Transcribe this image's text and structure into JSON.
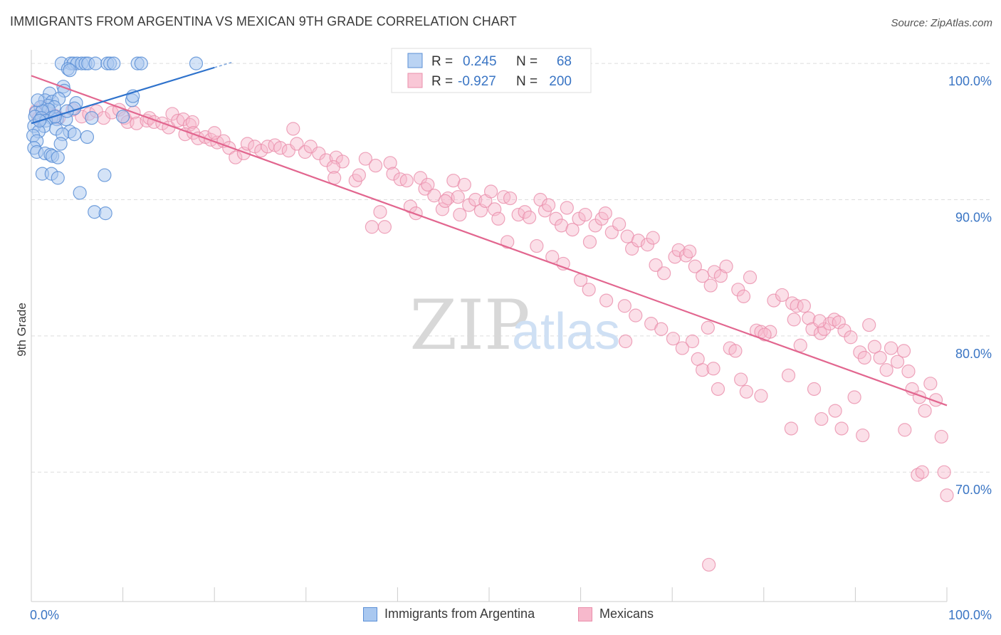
{
  "title": "IMMIGRANTS FROM ARGENTINA VS MEXICAN 9TH GRADE CORRELATION CHART",
  "source": "Source: ZipAtlas.com",
  "watermark": {
    "zip": "ZIP",
    "atlas": "atlas"
  },
  "colors": {
    "argentina_fill": "#a9c8f0",
    "argentina_stroke": "#5b8fd6",
    "argentina_line": "#2e72cc",
    "mexican_fill": "#f7b9cc",
    "mexican_stroke": "#ea8fab",
    "mexican_line": "#e2668f",
    "axis_text": "#3a75c4",
    "grid": "#dddddd"
  },
  "chart_data": {
    "type": "scatter",
    "title": "IMMIGRANTS FROM ARGENTINA VS MEXICAN 9TH GRADE CORRELATION CHART",
    "xlabel": "",
    "ylabel": "9th Grade",
    "xlim": [
      0,
      100
    ],
    "ylim": [
      60.5,
      101
    ],
    "x_tick_labels": [
      "0.0%",
      "100.0%"
    ],
    "y_ticks": [
      70,
      80,
      90,
      100
    ],
    "y_tick_labels": [
      "70.0%",
      "80.0%",
      "90.0%",
      "100.0%"
    ],
    "grid": true,
    "legend_stats": [
      {
        "r_label": "R =",
        "r_value": "0.245",
        "n_label": "N =",
        "n_value": "68"
      },
      {
        "r_label": "R =",
        "r_value": "-0.927",
        "n_label": "N =",
        "n_value": "200"
      }
    ],
    "series": [
      {
        "name": "Immigrants from Argentina",
        "R": 0.245,
        "N": 68,
        "trendline": {
          "x": [
            0,
            20
          ],
          "y": [
            95.6,
            99.7
          ]
        },
        "trendline_dashed": {
          "x": [
            20,
            22
          ],
          "y": [
            99.7,
            100.1
          ]
        },
        "points": [
          [
            3.3,
            100
          ],
          [
            4.3,
            100
          ],
          [
            4.6,
            100
          ],
          [
            5.0,
            100
          ],
          [
            5.5,
            100
          ],
          [
            5.9,
            100
          ],
          [
            6.2,
            100
          ],
          [
            7.0,
            100
          ],
          [
            8.3,
            100
          ],
          [
            8.6,
            100
          ],
          [
            9.0,
            100
          ],
          [
            11.6,
            100
          ],
          [
            12.0,
            100
          ],
          [
            18.0,
            100
          ],
          [
            4.0,
            99.6
          ],
          [
            4.2,
            99.5
          ],
          [
            3.5,
            98.3
          ],
          [
            3.6,
            98.0
          ],
          [
            2.0,
            97.8
          ],
          [
            1.5,
            97.3
          ],
          [
            2.3,
            97.2
          ],
          [
            3.0,
            97.4
          ],
          [
            1.8,
            96.9
          ],
          [
            2.5,
            96.8
          ],
          [
            4.9,
            97.1
          ],
          [
            1.0,
            96.8
          ],
          [
            1.9,
            96.6
          ],
          [
            4.7,
            96.7
          ],
          [
            0.5,
            96.4
          ],
          [
            1.2,
            96.5
          ],
          [
            0.4,
            96.1
          ],
          [
            1.1,
            96.0
          ],
          [
            2.2,
            96.0
          ],
          [
            2.8,
            95.9
          ],
          [
            3.8,
            95.9
          ],
          [
            1.6,
            95.8
          ],
          [
            0.3,
            95.4
          ],
          [
            1.4,
            95.4
          ],
          [
            2.7,
            95.2
          ],
          [
            0.8,
            95.0
          ],
          [
            4.2,
            95.0
          ],
          [
            0.2,
            94.7
          ],
          [
            3.4,
            94.8
          ],
          [
            4.7,
            94.8
          ],
          [
            6.1,
            94.6
          ],
          [
            0.6,
            94.3
          ],
          [
            0.3,
            93.8
          ],
          [
            3.2,
            94.1
          ],
          [
            0.6,
            93.5
          ],
          [
            1.5,
            93.4
          ],
          [
            2.1,
            93.3
          ],
          [
            2.3,
            93.2
          ],
          [
            2.9,
            93.1
          ],
          [
            1.2,
            91.9
          ],
          [
            2.2,
            91.9
          ],
          [
            2.9,
            91.6
          ],
          [
            8.0,
            91.8
          ],
          [
            5.3,
            90.5
          ],
          [
            6.9,
            89.1
          ],
          [
            8.1,
            89.0
          ],
          [
            6.6,
            96.0
          ],
          [
            10.0,
            96.1
          ],
          [
            11.0,
            97.3
          ],
          [
            11.1,
            97.6
          ],
          [
            0.7,
            97.3
          ],
          [
            3.9,
            96.5
          ],
          [
            0.9,
            95.8
          ],
          [
            2.6,
            96.1
          ]
        ]
      },
      {
        "name": "Mexicans",
        "R": -0.927,
        "N": 200,
        "trendline": {
          "x": [
            0,
            100
          ],
          "y": [
            99.1,
            74.9
          ]
        },
        "points": [
          [
            0.5,
            96.5
          ],
          [
            0.8,
            96.0
          ],
          [
            1.2,
            96.8
          ],
          [
            1.8,
            96.5
          ],
          [
            2.5,
            96.2
          ],
          [
            3.0,
            96.0
          ],
          [
            4.5,
            96.6
          ],
          [
            5.5,
            96.1
          ],
          [
            6.3,
            96.3
          ],
          [
            7.1,
            96.5
          ],
          [
            7.9,
            96.0
          ],
          [
            8.8,
            96.4
          ],
          [
            9.6,
            96.6
          ],
          [
            10.2,
            96.0
          ],
          [
            10.5,
            95.7
          ],
          [
            11.2,
            96.4
          ],
          [
            11.5,
            95.6
          ],
          [
            12.6,
            95.8
          ],
          [
            12.9,
            96.0
          ],
          [
            13.4,
            95.7
          ],
          [
            14.3,
            95.6
          ],
          [
            15.0,
            95.3
          ],
          [
            15.4,
            96.3
          ],
          [
            16.0,
            95.8
          ],
          [
            16.6,
            95.9
          ],
          [
            17.3,
            95.5
          ],
          [
            17.6,
            95.7
          ],
          [
            16.8,
            94.8
          ],
          [
            17.7,
            94.9
          ],
          [
            18.2,
            94.5
          ],
          [
            19.0,
            94.6
          ],
          [
            19.6,
            94.4
          ],
          [
            20.3,
            94.2
          ],
          [
            20.0,
            94.9
          ],
          [
            21.0,
            94.3
          ],
          [
            21.6,
            93.8
          ],
          [
            22.3,
            93.1
          ],
          [
            23.2,
            93.4
          ],
          [
            23.6,
            94.1
          ],
          [
            24.4,
            93.9
          ],
          [
            25.1,
            93.6
          ],
          [
            25.8,
            93.9
          ],
          [
            26.6,
            94.0
          ],
          [
            27.2,
            93.8
          ],
          [
            28.1,
            93.6
          ],
          [
            28.6,
            95.2
          ],
          [
            29.0,
            94.1
          ],
          [
            29.9,
            93.5
          ],
          [
            30.5,
            93.9
          ],
          [
            31.4,
            93.4
          ],
          [
            32.2,
            92.9
          ],
          [
            33.3,
            93.1
          ],
          [
            34.0,
            92.8
          ],
          [
            33.0,
            92.4
          ],
          [
            33.1,
            91.6
          ],
          [
            35.4,
            91.4
          ],
          [
            35.8,
            91.8
          ],
          [
            36.5,
            93.0
          ],
          [
            37.6,
            92.5
          ],
          [
            38.1,
            89.1
          ],
          [
            38.6,
            88.0
          ],
          [
            39.2,
            92.7
          ],
          [
            39.5,
            91.9
          ],
          [
            40.3,
            91.5
          ],
          [
            41.0,
            91.4
          ],
          [
            41.4,
            89.5
          ],
          [
            42.5,
            91.6
          ],
          [
            43.0,
            90.8
          ],
          [
            43.3,
            91.1
          ],
          [
            44.0,
            90.3
          ],
          [
            44.9,
            89.3
          ],
          [
            45.5,
            90.1
          ],
          [
            46.1,
            91.4
          ],
          [
            46.6,
            90.2
          ],
          [
            47.3,
            91.1
          ],
          [
            47.8,
            89.6
          ],
          [
            48.5,
            90.0
          ],
          [
            49.1,
            89.2
          ],
          [
            49.6,
            89.9
          ],
          [
            50.2,
            90.6
          ],
          [
            50.6,
            89.3
          ],
          [
            51.6,
            90.2
          ],
          [
            52.3,
            90.1
          ],
          [
            53.2,
            88.9
          ],
          [
            53.9,
            89.1
          ],
          [
            54.4,
            88.7
          ],
          [
            55.6,
            90.0
          ],
          [
            56.1,
            89.2
          ],
          [
            56.5,
            89.6
          ],
          [
            57.3,
            88.6
          ],
          [
            57.9,
            88.1
          ],
          [
            58.5,
            89.4
          ],
          [
            59.1,
            87.8
          ],
          [
            59.8,
            88.6
          ],
          [
            60.5,
            88.9
          ],
          [
            61.0,
            86.9
          ],
          [
            61.6,
            88.1
          ],
          [
            62.3,
            88.6
          ],
          [
            62.7,
            89.0
          ],
          [
            63.4,
            87.6
          ],
          [
            64.2,
            88.2
          ],
          [
            65.1,
            87.3
          ],
          [
            65.6,
            86.4
          ],
          [
            66.3,
            87.0
          ],
          [
            67.3,
            86.7
          ],
          [
            67.9,
            87.2
          ],
          [
            68.2,
            85.2
          ],
          [
            69.1,
            84.6
          ],
          [
            70.3,
            85.8
          ],
          [
            70.7,
            86.3
          ],
          [
            71.5,
            85.9
          ],
          [
            71.9,
            86.2
          ],
          [
            72.5,
            85.1
          ],
          [
            73.3,
            84.4
          ],
          [
            74.2,
            83.7
          ],
          [
            74.6,
            84.7
          ],
          [
            75.3,
            84.4
          ],
          [
            75.9,
            85.1
          ],
          [
            77.2,
            83.4
          ],
          [
            77.8,
            82.9
          ],
          [
            78.5,
            84.3
          ],
          [
            79.2,
            80.4
          ],
          [
            79.7,
            80.3
          ],
          [
            80.7,
            80.3
          ],
          [
            81.1,
            82.6
          ],
          [
            82.0,
            83.0
          ],
          [
            83.1,
            82.4
          ],
          [
            83.6,
            82.2
          ],
          [
            84.4,
            82.2
          ],
          [
            84.9,
            81.3
          ],
          [
            85.3,
            80.5
          ],
          [
            86.2,
            80.2
          ],
          [
            86.6,
            80.5
          ],
          [
            87.2,
            80.9
          ],
          [
            87.7,
            81.2
          ],
          [
            88.2,
            81.0
          ],
          [
            88.8,
            80.4
          ],
          [
            89.5,
            79.9
          ],
          [
            90.5,
            78.8
          ],
          [
            91.0,
            78.4
          ],
          [
            91.5,
            80.8
          ],
          [
            92.1,
            79.2
          ],
          [
            92.7,
            78.4
          ],
          [
            93.4,
            77.5
          ],
          [
            93.9,
            79.1
          ],
          [
            94.6,
            78.1
          ],
          [
            95.3,
            78.9
          ],
          [
            95.8,
            77.4
          ],
          [
            96.2,
            76.1
          ],
          [
            97.0,
            75.5
          ],
          [
            97.6,
            74.5
          ],
          [
            98.2,
            76.5
          ],
          [
            98.8,
            75.3
          ],
          [
            99.4,
            72.6
          ],
          [
            99.7,
            70.0
          ],
          [
            100.0,
            68.3
          ],
          [
            74.0,
            63.2
          ],
          [
            83.3,
            81.2
          ],
          [
            84.0,
            79.3
          ],
          [
            64.9,
            79.6
          ],
          [
            82.7,
            77.1
          ],
          [
            80.1,
            80.1
          ],
          [
            72.2,
            79.6
          ],
          [
            73.9,
            80.6
          ],
          [
            76.3,
            79.1
          ],
          [
            76.9,
            78.9
          ],
          [
            77.5,
            76.8
          ],
          [
            86.1,
            81.1
          ],
          [
            89.9,
            75.5
          ],
          [
            95.4,
            73.1
          ],
          [
            96.8,
            69.8
          ],
          [
            97.3,
            70.0
          ],
          [
            37.2,
            88.0
          ],
          [
            42.0,
            89.0
          ],
          [
            45.2,
            89.9
          ],
          [
            46.8,
            88.9
          ],
          [
            51.0,
            88.6
          ],
          [
            52.0,
            86.9
          ],
          [
            55.2,
            86.6
          ],
          [
            56.9,
            85.8
          ],
          [
            58.1,
            85.3
          ],
          [
            60.0,
            84.1
          ],
          [
            60.9,
            83.4
          ],
          [
            62.8,
            82.6
          ],
          [
            64.8,
            82.2
          ],
          [
            66.0,
            81.5
          ],
          [
            67.7,
            80.9
          ],
          [
            68.8,
            80.5
          ],
          [
            70.1,
            79.8
          ],
          [
            71.1,
            79.1
          ],
          [
            72.8,
            78.3
          ],
          [
            73.3,
            77.5
          ],
          [
            74.5,
            77.6
          ],
          [
            75.0,
            76.1
          ],
          [
            78.1,
            75.9
          ],
          [
            79.7,
            75.6
          ],
          [
            83.0,
            73.2
          ],
          [
            85.5,
            76.1
          ],
          [
            86.3,
            73.9
          ],
          [
            87.8,
            74.5
          ],
          [
            88.5,
            73.2
          ],
          [
            90.8,
            72.7
          ]
        ]
      }
    ]
  },
  "legend": {
    "items": [
      {
        "label": "Immigrants from Argentina"
      },
      {
        "label": "Mexicans"
      }
    ]
  }
}
